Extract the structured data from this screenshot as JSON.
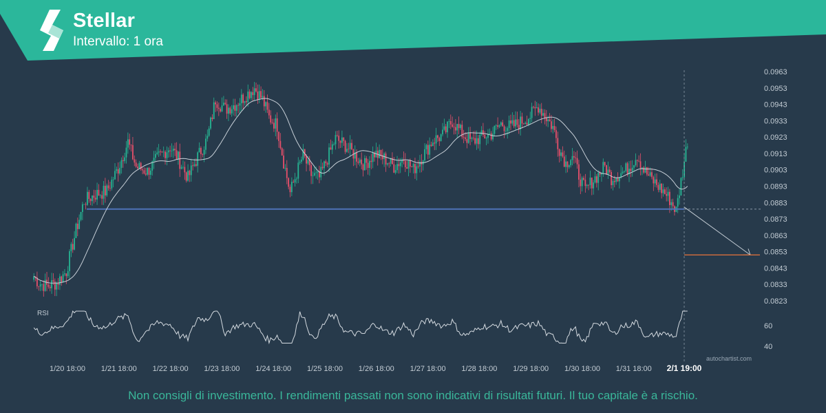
{
  "header": {
    "title": "Stellar",
    "subtitle": "Intervallo: 1 ora"
  },
  "colors": {
    "background": "#273a4b",
    "banner": "#2bb79b",
    "bullish_candle": "#26b593",
    "bearish_candle": "#e8506b",
    "support_line": "#4f72b8",
    "target_line": "#e8743b",
    "moving_average": "#c8d0d8",
    "rsi_line": "#d5dbe1",
    "text": "#c3ccd4"
  },
  "chart_data": {
    "type": "candlestick",
    "symbol": "Stellar",
    "interval": "1 ora",
    "x_ticks": [
      "1/20 18:00",
      "1/21 18:00",
      "1/22 18:00",
      "1/23 18:00",
      "1/24 18:00",
      "1/25 18:00",
      "1/26 18:00",
      "1/27 18:00",
      "1/28 18:00",
      "1/29 18:00",
      "1/30 18:00",
      "1/31 18:00"
    ],
    "current_time_label": "2/1 19:00",
    "y_ticks": [
      "0.0963",
      "0.0953",
      "0.0943",
      "0.0933",
      "0.0923",
      "0.0913",
      "0.0903",
      "0.0893",
      "0.0883",
      "0.0873",
      "0.0863",
      "0.0853",
      "0.0843",
      "0.0833",
      "0.0823"
    ],
    "ylim": [
      0.0819,
      0.0964
    ],
    "price_path": [
      [
        0,
        0.0838
      ],
      [
        3,
        0.0834
      ],
      [
        8,
        0.0832
      ],
      [
        14,
        0.0834
      ],
      [
        20,
        0.0841
      ],
      [
        26,
        0.0866
      ],
      [
        31,
        0.0884
      ],
      [
        38,
        0.0888
      ],
      [
        45,
        0.089
      ],
      [
        52,
        0.0904
      ],
      [
        58,
        0.092
      ],
      [
        63,
        0.0905
      ],
      [
        70,
        0.0902
      ],
      [
        77,
        0.0911
      ],
      [
        84,
        0.0917
      ],
      [
        89,
        0.091
      ],
      [
        95,
        0.0898
      ],
      [
        101,
        0.0911
      ],
      [
        107,
        0.0922
      ],
      [
        112,
        0.0946
      ],
      [
        118,
        0.094
      ],
      [
        124,
        0.0943
      ],
      [
        130,
        0.0948
      ],
      [
        136,
        0.0953
      ],
      [
        141,
        0.0946
      ],
      [
        145,
        0.0935
      ],
      [
        150,
        0.093
      ],
      [
        154,
        0.0908
      ],
      [
        158,
        0.0889
      ],
      [
        162,
        0.0901
      ],
      [
        166,
        0.0912
      ],
      [
        171,
        0.09
      ],
      [
        176,
        0.0898
      ],
      [
        181,
        0.091
      ],
      [
        186,
        0.0922
      ],
      [
        192,
        0.0918
      ],
      [
        198,
        0.0912
      ],
      [
        204,
        0.0906
      ],
      [
        210,
        0.0913
      ],
      [
        216,
        0.091
      ],
      [
        222,
        0.0905
      ],
      [
        228,
        0.091
      ],
      [
        234,
        0.0903
      ],
      [
        240,
        0.0912
      ],
      [
        246,
        0.0921
      ],
      [
        252,
        0.0924
      ],
      [
        258,
        0.0933
      ],
      [
        264,
        0.0925
      ],
      [
        270,
        0.092
      ],
      [
        276,
        0.0923
      ],
      [
        282,
        0.0925
      ],
      [
        288,
        0.0931
      ],
      [
        294,
        0.0929
      ],
      [
        300,
        0.0932
      ],
      [
        306,
        0.0936
      ],
      [
        311,
        0.0942
      ],
      [
        316,
        0.0935
      ],
      [
        320,
        0.0929
      ],
      [
        324,
        0.0916
      ],
      [
        328,
        0.0907
      ],
      [
        332,
        0.0912
      ],
      [
        336,
        0.09
      ],
      [
        340,
        0.089
      ],
      [
        344,
        0.0896
      ],
      [
        348,
        0.09
      ],
      [
        352,
        0.0905
      ],
      [
        356,
        0.0898
      ],
      [
        360,
        0.09
      ],
      [
        364,
        0.0902
      ],
      [
        368,
        0.0906
      ],
      [
        372,
        0.0912
      ],
      [
        376,
        0.0903
      ],
      [
        380,
        0.0898
      ],
      [
        384,
        0.0894
      ],
      [
        388,
        0.089
      ],
      [
        392,
        0.0885
      ],
      [
        396,
        0.0878
      ],
      [
        400,
        0.0902
      ],
      [
        403,
        0.0921
      ]
    ],
    "support_level": 0.0879,
    "target_level": 0.0851,
    "rsi_ticks": [
      "60",
      "40"
    ],
    "rsi_label": "RSI",
    "watermark": "autochartist.com"
  },
  "footer": {
    "disclaimer": "Non consigli di investimento. I rendimenti passati non sono indicativi di risultati futuri. Il tuo capitale è a rischio."
  }
}
